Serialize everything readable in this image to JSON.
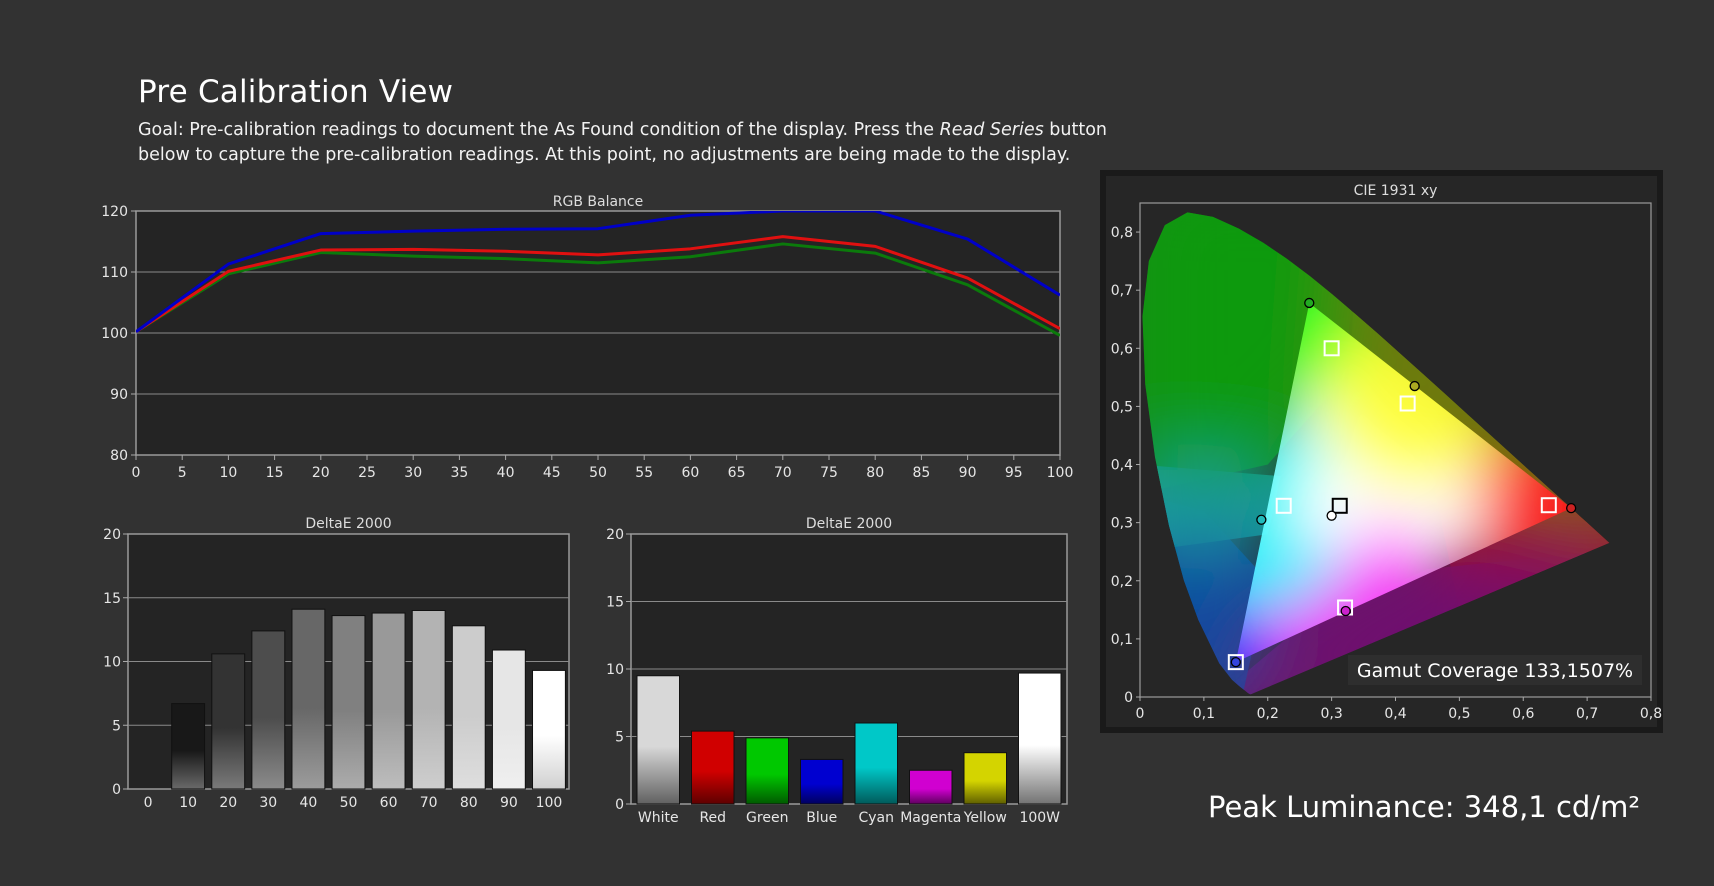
{
  "page": {
    "title": "Pre Calibration View",
    "goal_prefix": "Goal: Pre-calibration readings to document the As Found condition of the display. Press the ",
    "goal_emphasis": "Read Series",
    "goal_suffix": " button below to capture the pre-calibration readings. At this point, no adjustments are being made to the display.",
    "peak_luminance": "Peak Luminance: 348,1 cd/m²"
  },
  "chart_data": [
    {
      "id": "rgb",
      "type": "line",
      "title": "RGB Balance",
      "xlim": [
        0,
        100
      ],
      "ylim": [
        80,
        120
      ],
      "xticks": [
        "0",
        "5",
        "10",
        "15",
        "20",
        "25",
        "30",
        "35",
        "40",
        "45",
        "50",
        "55",
        "60",
        "65",
        "70",
        "75",
        "80",
        "85",
        "90",
        "95",
        "100"
      ],
      "yticks": [
        "80",
        "90",
        "100",
        "110",
        "120"
      ],
      "x": [
        0,
        10,
        20,
        30,
        40,
        50,
        60,
        70,
        80,
        90,
        100
      ],
      "series": [
        {
          "color": "#0000c8",
          "values": [
            100.2,
            111.3,
            116.3,
            116.7,
            117.0,
            117.1,
            119.3,
            120.0,
            120.0,
            115.4,
            106.2
          ]
        },
        {
          "color": "#e01010",
          "values": [
            100.2,
            110.1,
            113.6,
            113.7,
            113.4,
            112.8,
            113.8,
            115.8,
            114.2,
            109.0,
            100.7
          ]
        },
        {
          "color": "#0b7a0b",
          "values": [
            100.2,
            109.7,
            113.2,
            112.6,
            112.2,
            111.5,
            112.5,
            114.6,
            113.1,
            107.9,
            99.6
          ]
        }
      ],
      "grid": true
    },
    {
      "id": "grayscale",
      "type": "bar",
      "title": "DeltaE 2000",
      "categories": [
        "0",
        "10",
        "20",
        "30",
        "40",
        "50",
        "60",
        "70",
        "80",
        "90",
        "100"
      ],
      "values": [
        0,
        6.7,
        10.6,
        12.4,
        14.1,
        13.6,
        13.8,
        14.0,
        12.8,
        10.9,
        9.3
      ],
      "colors": [
        "#000000",
        "#181818",
        "#333333",
        "#4d4d4d",
        "#676767",
        "#808080",
        "#999999",
        "#b3b3b3",
        "#cccccc",
        "#e6e6e6",
        "#ffffff"
      ],
      "ylim": [
        0,
        20
      ],
      "yticks": [
        "0",
        "5",
        "10",
        "15",
        "20"
      ],
      "grid": true
    },
    {
      "id": "colors",
      "type": "bar",
      "title": "DeltaE 2000",
      "categories": [
        "White",
        "Red",
        "Green",
        "Blue",
        "Cyan",
        "Magenta",
        "Yellow",
        "100W"
      ],
      "values": [
        9.5,
        5.4,
        4.9,
        3.3,
        6.0,
        2.5,
        3.8,
        9.7
      ],
      "colors": [
        "#d8d8d8",
        "#d00000",
        "#00c800",
        "#0000d0",
        "#00c8c8",
        "#d000d0",
        "#d4d400",
        "#ffffff"
      ],
      "ylim": [
        0,
        20
      ],
      "yticks": [
        "0",
        "5",
        "10",
        "15",
        "20"
      ],
      "grid": true
    },
    {
      "id": "cie",
      "type": "scatter",
      "title": "CIE 1931 xy",
      "xlim": [
        0,
        0.8
      ],
      "ylim": [
        0,
        0.85
      ],
      "xticks": [
        "0",
        "0,1",
        "0,2",
        "0,3",
        "0,4",
        "0,5",
        "0,6",
        "0,7",
        "0,8"
      ],
      "yticks": [
        "0",
        "0,1",
        "0,2",
        "0,3",
        "0,4",
        "0,5",
        "0,6",
        "0,7",
        "0,8"
      ],
      "gamut": {
        "red": [
          0.675,
          0.325
        ],
        "green": [
          0.265,
          0.678
        ],
        "blue": [
          0.15,
          0.06
        ]
      },
      "measured": [
        {
          "name": "Red",
          "color": "#cc2222",
          "x": 0.675,
          "y": 0.325
        },
        {
          "name": "Green",
          "color": "#22aa22",
          "x": 0.265,
          "y": 0.678
        },
        {
          "name": "Blue",
          "color": "#3344dd",
          "x": 0.15,
          "y": 0.06
        },
        {
          "name": "Cyan",
          "color": "#22bbbb",
          "x": 0.19,
          "y": 0.305
        },
        {
          "name": "Magenta",
          "color": "#cc22cc",
          "x": 0.322,
          "y": 0.148
        },
        {
          "name": "Yellow",
          "color": "#aaaa22",
          "x": 0.43,
          "y": 0.535
        },
        {
          "name": "White",
          "color": "#ffffff",
          "x": 0.3,
          "y": 0.312
        }
      ],
      "targets": [
        {
          "name": "Red",
          "x": 0.64,
          "y": 0.33
        },
        {
          "name": "Green",
          "x": 0.3,
          "y": 0.6
        },
        {
          "name": "Blue",
          "x": 0.15,
          "y": 0.06
        },
        {
          "name": "Cyan",
          "x": 0.225,
          "y": 0.329
        },
        {
          "name": "Magenta",
          "x": 0.321,
          "y": 0.154
        },
        {
          "name": "Yellow",
          "x": 0.419,
          "y": 0.505
        },
        {
          "name": "White",
          "x": 0.3127,
          "y": 0.329
        }
      ],
      "gamut_coverage": "Gamut Coverage 133,1507%"
    }
  ]
}
